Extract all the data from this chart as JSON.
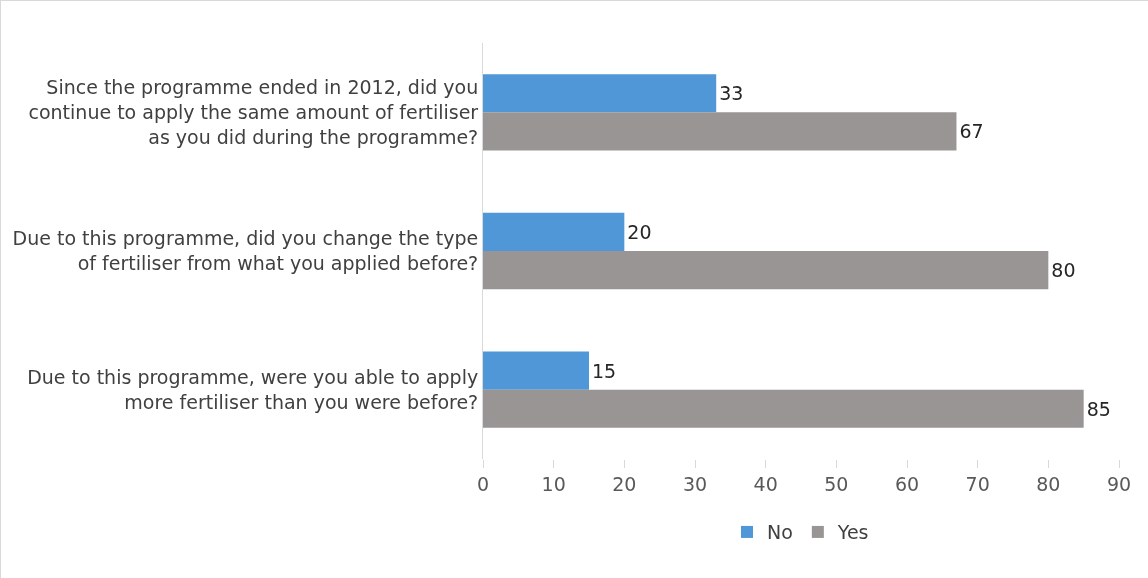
{
  "chart_data": {
    "type": "bar",
    "orientation": "horizontal",
    "categories": [
      "Since the programme ended in 2012, did you continue to apply the same amount of fertiliser as you did during the programme?",
      "Due to this programme, did you change the type of fertiliser from what you applied before?",
      "Due to this programme, were you able to apply more fertiliser than you were before?"
    ],
    "series": [
      {
        "name": "No",
        "color": "#4f97d7",
        "values": [
          33,
          20,
          15
        ]
      },
      {
        "name": "Yes",
        "color": "#999595",
        "values": [
          67,
          80,
          85
        ]
      }
    ],
    "xlim": [
      0,
      90
    ],
    "xticks": [
      0,
      10,
      20,
      30,
      40,
      50,
      60,
      70,
      80,
      90
    ],
    "data_labels": true,
    "legend": "bottom"
  }
}
